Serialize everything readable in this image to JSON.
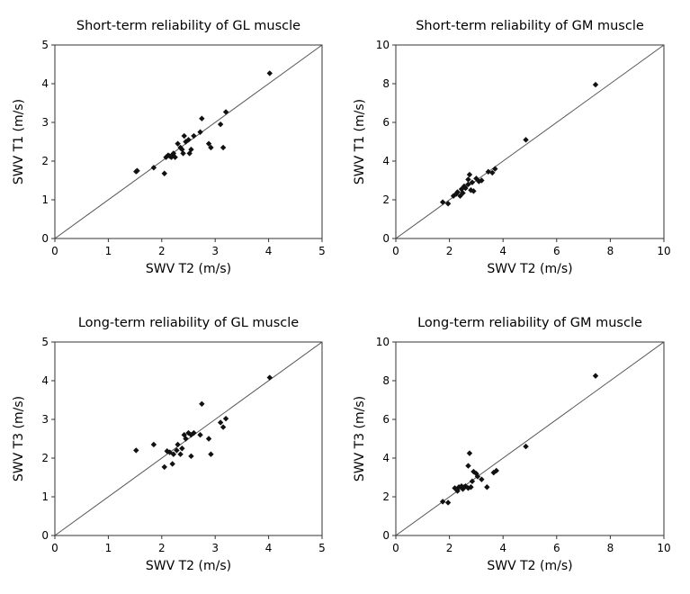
{
  "chart_data": [
    {
      "type": "scatter",
      "title": "Short-term reliability of GL muscle",
      "xlabel": "SWV T2 (m/s)",
      "ylabel": "SWV T1 (m/s)",
      "xlim": [
        0,
        5
      ],
      "ylim": [
        0,
        5
      ],
      "xticks": [
        "0",
        "1",
        "2",
        "3",
        "4",
        "5"
      ],
      "yticks": [
        "0",
        "1",
        "2",
        "3",
        "4",
        "5"
      ],
      "identity_line": true,
      "points": [
        [
          1.52,
          1.73
        ],
        [
          1.54,
          1.75
        ],
        [
          1.85,
          1.83
        ],
        [
          2.05,
          1.68
        ],
        [
          2.08,
          2.1
        ],
        [
          2.12,
          2.15
        ],
        [
          2.15,
          2.13
        ],
        [
          2.18,
          2.1
        ],
        [
          2.2,
          2.15
        ],
        [
          2.22,
          2.2
        ],
        [
          2.25,
          2.1
        ],
        [
          2.3,
          2.45
        ],
        [
          2.35,
          2.35
        ],
        [
          2.38,
          2.3
        ],
        [
          2.4,
          2.2
        ],
        [
          2.45,
          2.5
        ],
        [
          2.42,
          2.65
        ],
        [
          2.5,
          2.55
        ],
        [
          2.52,
          2.2
        ],
        [
          2.55,
          2.3
        ],
        [
          2.6,
          2.65
        ],
        [
          2.72,
          2.75
        ],
        [
          2.75,
          3.1
        ],
        [
          2.88,
          2.45
        ],
        [
          2.92,
          2.35
        ],
        [
          3.1,
          2.95
        ],
        [
          3.15,
          2.35
        ],
        [
          3.2,
          3.27
        ],
        [
          4.02,
          4.27
        ]
      ]
    },
    {
      "type": "scatter",
      "title": "Short-term reliability of GM muscle",
      "xlabel": "SWV T2 (m/s)",
      "ylabel": "SWV T1 (m/s)",
      "xlim": [
        0,
        10
      ],
      "ylim": [
        0,
        10
      ],
      "xticks": [
        "0",
        "2",
        "4",
        "6",
        "8",
        "10"
      ],
      "yticks": [
        "0",
        "2",
        "4",
        "6",
        "8",
        "10"
      ],
      "identity_line": true,
      "points": [
        [
          1.75,
          1.88
        ],
        [
          1.95,
          1.8
        ],
        [
          2.15,
          2.2
        ],
        [
          2.25,
          2.3
        ],
        [
          2.3,
          2.4
        ],
        [
          2.4,
          2.2
        ],
        [
          2.45,
          2.55
        ],
        [
          2.5,
          2.35
        ],
        [
          2.55,
          2.7
        ],
        [
          2.6,
          2.6
        ],
        [
          2.7,
          2.8
        ],
        [
          2.7,
          3.05
        ],
        [
          2.75,
          3.3
        ],
        [
          2.8,
          2.5
        ],
        [
          2.85,
          2.9
        ],
        [
          2.9,
          2.45
        ],
        [
          3.0,
          3.1
        ],
        [
          3.1,
          2.95
        ],
        [
          3.2,
          3.0
        ],
        [
          3.45,
          3.45
        ],
        [
          3.6,
          3.4
        ],
        [
          3.7,
          3.6
        ],
        [
          4.85,
          5.1
        ],
        [
          7.45,
          7.95
        ]
      ]
    },
    {
      "type": "scatter",
      "title": "Long-term reliability of GL muscle",
      "xlabel": "SWV T2 (m/s)",
      "ylabel": "SWV T3 (m/s)",
      "xlim": [
        0,
        5
      ],
      "ylim": [
        0,
        5
      ],
      "xticks": [
        "0",
        "1",
        "2",
        "3",
        "4",
        "5"
      ],
      "yticks": [
        "0",
        "1",
        "2",
        "3",
        "4",
        "5"
      ],
      "identity_line": true,
      "points": [
        [
          1.52,
          2.2
        ],
        [
          1.85,
          2.35
        ],
        [
          2.05,
          1.77
        ],
        [
          2.1,
          2.18
        ],
        [
          2.15,
          2.15
        ],
        [
          2.2,
          1.85
        ],
        [
          2.22,
          2.1
        ],
        [
          2.28,
          2.2
        ],
        [
          2.3,
          2.35
        ],
        [
          2.35,
          2.1
        ],
        [
          2.38,
          2.25
        ],
        [
          2.42,
          2.6
        ],
        [
          2.45,
          2.5
        ],
        [
          2.5,
          2.65
        ],
        [
          2.55,
          2.6
        ],
        [
          2.55,
          2.05
        ],
        [
          2.6,
          2.65
        ],
        [
          2.72,
          2.6
        ],
        [
          2.75,
          3.4
        ],
        [
          2.88,
          2.5
        ],
        [
          2.92,
          2.1
        ],
        [
          3.1,
          2.92
        ],
        [
          3.15,
          2.8
        ],
        [
          3.2,
          3.02
        ],
        [
          4.02,
          4.08
        ]
      ]
    },
    {
      "type": "scatter",
      "title": "Long-term reliability of GM muscle",
      "xlabel": "SWV T2 (m/s)",
      "ylabel": "SWV T3 (m/s)",
      "xlim": [
        0,
        10
      ],
      "ylim": [
        0,
        10
      ],
      "xticks": [
        "0",
        "2",
        "4",
        "6",
        "8",
        "10"
      ],
      "yticks": [
        "0",
        "2",
        "4",
        "6",
        "8",
        "10"
      ],
      "identity_line": true,
      "points": [
        [
          1.75,
          1.75
        ],
        [
          1.95,
          1.7
        ],
        [
          2.2,
          2.45
        ],
        [
          2.3,
          2.3
        ],
        [
          2.35,
          2.5
        ],
        [
          2.45,
          2.55
        ],
        [
          2.5,
          2.4
        ],
        [
          2.55,
          2.5
        ],
        [
          2.6,
          2.55
        ],
        [
          2.7,
          2.45
        ],
        [
          2.7,
          3.6
        ],
        [
          2.75,
          4.25
        ],
        [
          2.8,
          2.5
        ],
        [
          2.85,
          2.8
        ],
        [
          2.9,
          3.3
        ],
        [
          3.0,
          3.2
        ],
        [
          3.05,
          3.05
        ],
        [
          3.2,
          2.9
        ],
        [
          3.4,
          2.5
        ],
        [
          3.65,
          3.25
        ],
        [
          3.75,
          3.35
        ],
        [
          4.85,
          4.6
        ],
        [
          7.45,
          8.25
        ]
      ]
    }
  ]
}
